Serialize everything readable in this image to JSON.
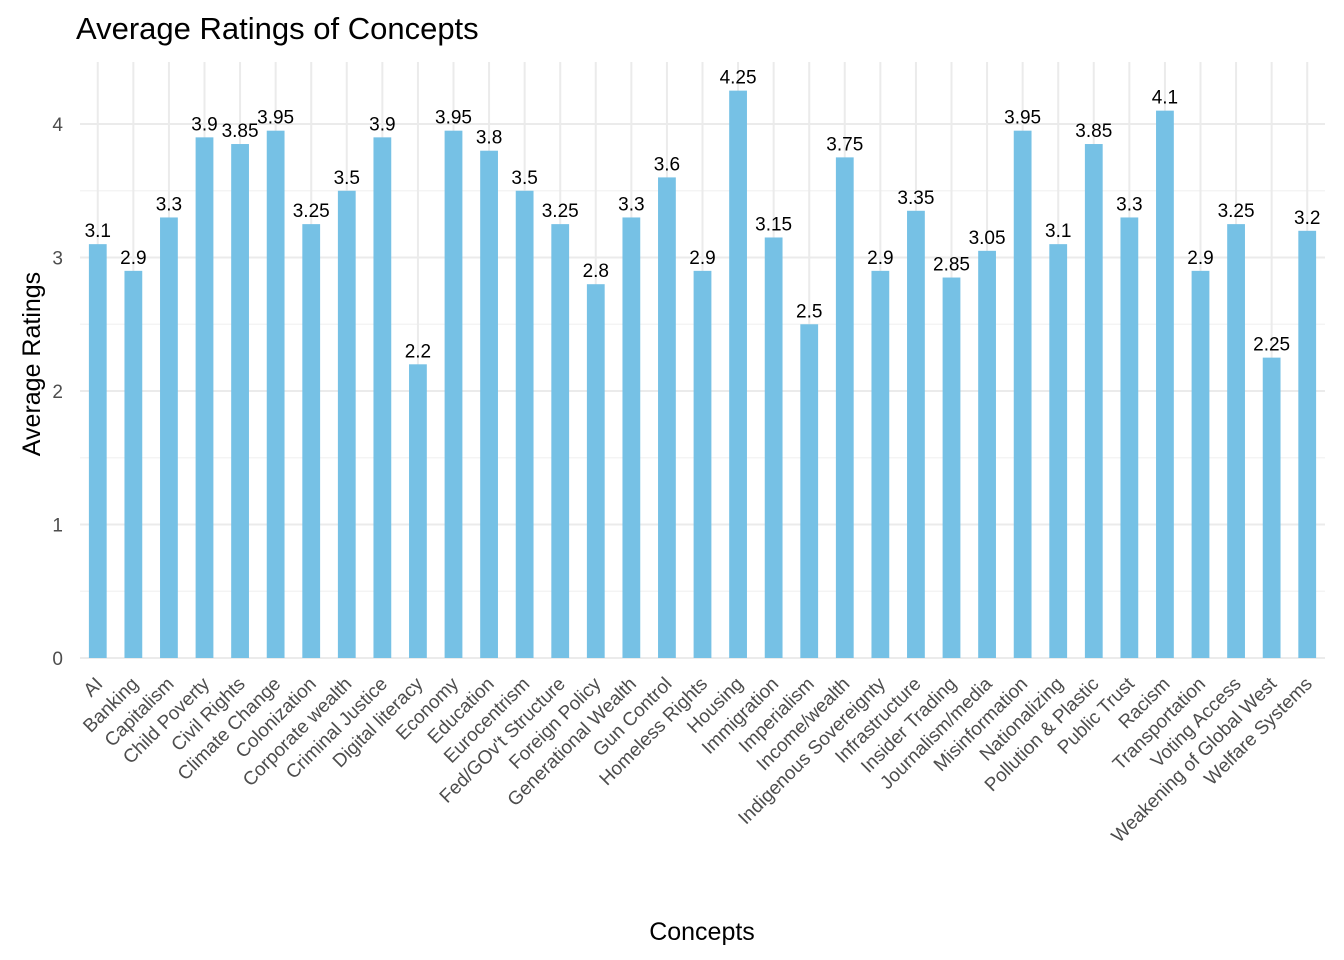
{
  "chart_data": {
    "type": "bar",
    "title": "Average Ratings of Concepts",
    "xlabel": "Concepts",
    "ylabel": "Average Ratings",
    "ylim": [
      0,
      4.4
    ],
    "yticks": [
      0,
      1,
      2,
      3,
      4
    ],
    "grid": true,
    "bar_color": "#76c1e5",
    "categories": [
      "AI",
      "Banking",
      "Capitalism",
      "Child Poverty",
      "Civil Rights",
      "Climate Change",
      "Colonization",
      "Corporate wealth",
      "Criminal Justice",
      "Digital literacy",
      "Economy",
      "Education",
      "Eurocentrism",
      "Fed/GOv't Structure",
      "Foreign Policy",
      "Generational Wealth",
      "Gun Control",
      "Homeless Rights",
      "Housing",
      "Immigration",
      "Imperialism",
      "Income/wealth",
      "Indigenous Sovereignty",
      "Infrastructure",
      "Insider Trading",
      "Journalism/media",
      "Misinformation",
      "Nationalizing",
      "Pollution & Plastic",
      "Public Trust",
      "Racism",
      "Transportation",
      "Voting Access",
      "Weakening of Global West",
      "Welfare Systems"
    ],
    "values": [
      3.1,
      2.9,
      3.3,
      3.9,
      3.85,
      3.95,
      3.25,
      3.5,
      3.9,
      2.2,
      3.95,
      3.8,
      3.5,
      3.25,
      2.8,
      3.3,
      3.6,
      2.9,
      4.25,
      3.15,
      2.5,
      3.75,
      2.9,
      3.35,
      2.85,
      3.05,
      3.95,
      3.1,
      3.85,
      3.3,
      4.1,
      2.9,
      3.25,
      2.25,
      3.2
    ],
    "value_labels": [
      "3.1",
      "2.9",
      "3.3",
      "3.9",
      "3.85",
      "3.95",
      "3.25",
      "3.5",
      "3.9",
      "2.2",
      "3.95",
      "3.8",
      "3.5",
      "3.25",
      "2.8",
      "3.3",
      "3.6",
      "2.9",
      "4.25",
      "3.15",
      "2.5",
      "3.75",
      "2.9",
      "3.35",
      "2.85",
      "3.05",
      "3.95",
      "3.1",
      "3.85",
      "3.3",
      "4.1",
      "2.9",
      "3.25",
      "2.25",
      "3.2"
    ]
  }
}
